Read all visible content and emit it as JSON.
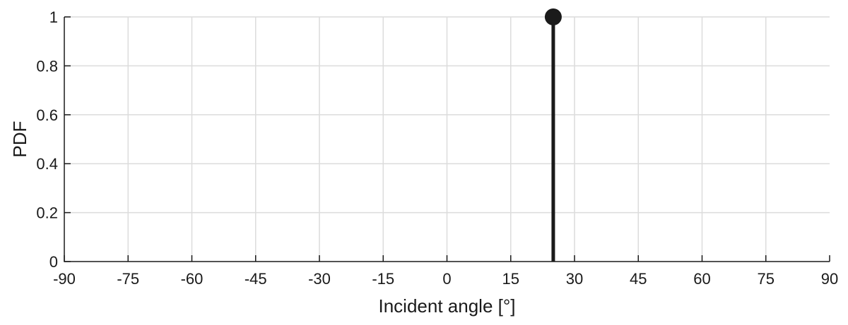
{
  "chart_data": {
    "type": "stem",
    "title": "",
    "xlabel": "Incident angle [°]",
    "ylabel": "PDF",
    "xlim": [
      -90,
      90
    ],
    "ylim": [
      0,
      1
    ],
    "xticks": [
      -90,
      -75,
      -60,
      -45,
      -30,
      -15,
      0,
      15,
      30,
      45,
      60,
      75,
      90
    ],
    "xtick_labels": [
      "-90",
      "-75",
      "-60",
      "-45",
      "-30",
      "-15",
      "0",
      "15",
      "30",
      "45",
      "60",
      "75",
      "90"
    ],
    "yticks": [
      0,
      0.2,
      0.4,
      0.6,
      0.8,
      1
    ],
    "ytick_labels": [
      "0",
      "0.2",
      "0.4",
      "0.6",
      "0.8",
      "1"
    ],
    "grid": true,
    "series": [
      {
        "points": [
          {
            "x": 25,
            "y": 1
          }
        ],
        "color": "#1a1a1a",
        "marker": "filled-circle"
      }
    ]
  }
}
